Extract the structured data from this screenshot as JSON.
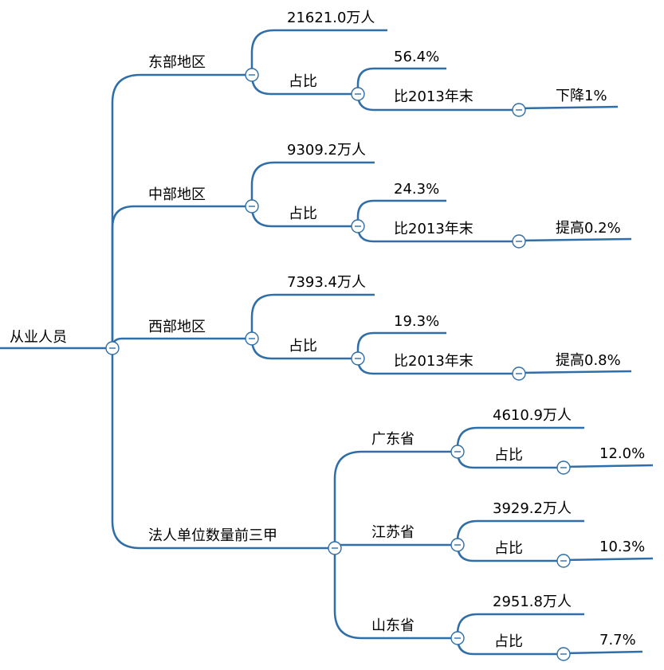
{
  "root": {
    "label": "从业人员"
  },
  "regions": [
    {
      "label": "东部地区",
      "amount": "21621.0万人",
      "share_label": "占比",
      "share": "56.4%",
      "change_label": "比2013年末",
      "change": "下降1%"
    },
    {
      "label": "中部地区",
      "amount": "9309.2万人",
      "share_label": "占比",
      "share": "24.3%",
      "change_label": "比2013年末",
      "change": "提高0.2%"
    },
    {
      "label": "西部地区",
      "amount": "7393.4万人",
      "share_label": "占比",
      "share": "19.3%",
      "change_label": "比2013年末",
      "change": "提高0.8%"
    }
  ],
  "top3": {
    "label": "法人单位数量前三甲",
    "provinces": [
      {
        "label": "广东省",
        "amount": "4610.9万人",
        "share_label": "占比",
        "share": "12.0%"
      },
      {
        "label": "江苏省",
        "amount": "3929.2万人",
        "share_label": "占比",
        "share": "10.3%"
      },
      {
        "label": "山东省",
        "amount": "2951.8万人",
        "share_label": "占比",
        "share": "7.7%"
      }
    ]
  },
  "colors": {
    "line": "#2f6ea8",
    "text": "#000000",
    "background": "#ffffff"
  },
  "icons": {
    "collapse": "collapse-minus-icon"
  }
}
